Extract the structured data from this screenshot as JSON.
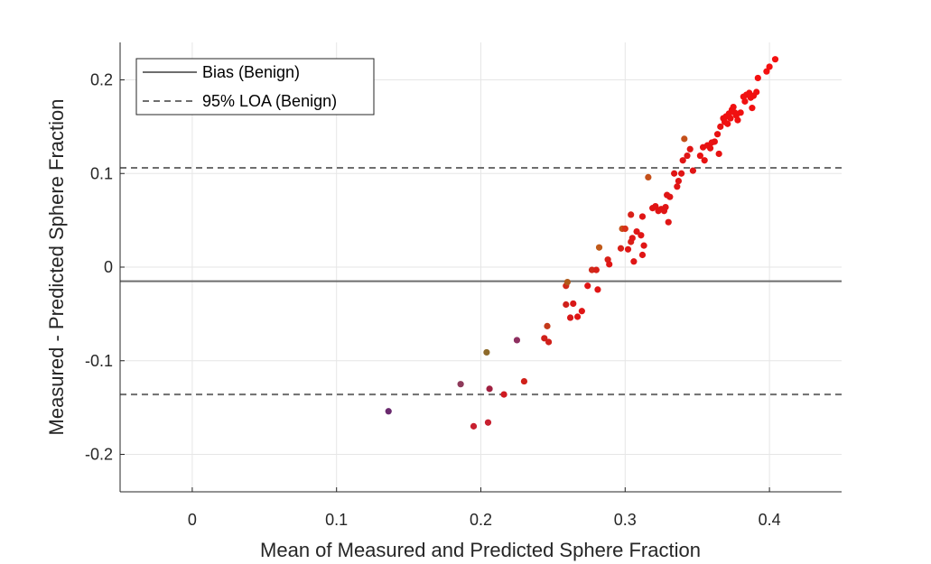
{
  "chart_data": {
    "type": "scatter",
    "title": "",
    "xlabel": "Mean of Measured and Predicted Sphere Fraction",
    "ylabel": "Measured - Predicted Sphere Fraction",
    "xlim": [
      -0.05,
      0.45
    ],
    "ylim": [
      -0.24,
      0.24
    ],
    "xticks": [
      0,
      0.1,
      0.2,
      0.3,
      0.4
    ],
    "xtick_labels": [
      "0",
      "0.1",
      "0.2",
      "0.3",
      "0.4"
    ],
    "yticks": [
      0.2,
      0.1,
      0,
      -0.1,
      -0.2
    ],
    "ytick_labels": [
      "0.2",
      "0.1",
      "0",
      "-0.1",
      "-0.2"
    ],
    "grid": true,
    "legend_position": "top-left",
    "lines": [
      {
        "name": "Bias (Benign)",
        "y": -0.015,
        "style": "solid",
        "color": "#6e6e6e"
      },
      {
        "name": "95% LOA (Benign)",
        "y": 0.106,
        "style": "dashed",
        "color": "#6e6e6e"
      },
      {
        "name": "95% LOA (Benign)",
        "y": -0.136,
        "style": "dashed",
        "color": "#6e6e6e"
      }
    ],
    "legend": [
      "Bias (Benign)",
      "95% LOA (Benign)"
    ],
    "points": [
      {
        "x": 0.136,
        "y": -0.154,
        "color": "#6a2a6e"
      },
      {
        "x": 0.186,
        "y": -0.125,
        "color": "#8e3a5a"
      },
      {
        "x": 0.195,
        "y": -0.17,
        "color": "#c82030"
      },
      {
        "x": 0.204,
        "y": -0.091,
        "color": "#8e6a2a"
      },
      {
        "x": 0.205,
        "y": -0.166,
        "color": "#c82030"
      },
      {
        "x": 0.206,
        "y": -0.13,
        "color": "#a02040"
      },
      {
        "x": 0.216,
        "y": -0.136,
        "color": "#d01a20"
      },
      {
        "x": 0.225,
        "y": -0.078,
        "color": "#8e3060"
      },
      {
        "x": 0.23,
        "y": -0.122,
        "color": "#d0201a"
      },
      {
        "x": 0.244,
        "y": -0.076,
        "color": "#d0201a"
      },
      {
        "x": 0.246,
        "y": -0.063,
        "color": "#c43a1a"
      },
      {
        "x": 0.247,
        "y": -0.08,
        "color": "#d0201a"
      },
      {
        "x": 0.259,
        "y": -0.04,
        "color": "#d0201a"
      },
      {
        "x": 0.259,
        "y": -0.02,
        "color": "#d02a1a"
      },
      {
        "x": 0.26,
        "y": -0.016,
        "color": "#b05a1a"
      },
      {
        "x": 0.262,
        "y": -0.054,
        "color": "#d81818"
      },
      {
        "x": 0.264,
        "y": -0.039,
        "color": "#d81818"
      },
      {
        "x": 0.267,
        "y": -0.053,
        "color": "#e01515"
      },
      {
        "x": 0.27,
        "y": -0.047,
        "color": "#e01515"
      },
      {
        "x": 0.274,
        "y": -0.02,
        "color": "#e01515"
      },
      {
        "x": 0.277,
        "y": -0.003,
        "color": "#d02a1a"
      },
      {
        "x": 0.28,
        "y": -0.003,
        "color": "#d82018"
      },
      {
        "x": 0.281,
        "y": -0.024,
        "color": "#e01515"
      },
      {
        "x": 0.282,
        "y": 0.021,
        "color": "#c05a1a"
      },
      {
        "x": 0.288,
        "y": 0.008,
        "color": "#d82018"
      },
      {
        "x": 0.289,
        "y": 0.003,
        "color": "#e01515"
      },
      {
        "x": 0.297,
        "y": 0.02,
        "color": "#d82018"
      },
      {
        "x": 0.298,
        "y": 0.041,
        "color": "#c4501a"
      },
      {
        "x": 0.3,
        "y": 0.041,
        "color": "#d83018"
      },
      {
        "x": 0.302,
        "y": 0.019,
        "color": "#e01515"
      },
      {
        "x": 0.304,
        "y": 0.027,
        "color": "#d82018"
      },
      {
        "x": 0.304,
        "y": 0.056,
        "color": "#d82018"
      },
      {
        "x": 0.305,
        "y": 0.031,
        "color": "#e01515"
      },
      {
        "x": 0.306,
        "y": 0.006,
        "color": "#e01515"
      },
      {
        "x": 0.308,
        "y": 0.038,
        "color": "#e01515"
      },
      {
        "x": 0.311,
        "y": 0.034,
        "color": "#e01515"
      },
      {
        "x": 0.312,
        "y": 0.013,
        "color": "#e01515"
      },
      {
        "x": 0.312,
        "y": 0.054,
        "color": "#e01515"
      },
      {
        "x": 0.313,
        "y": 0.023,
        "color": "#e01515"
      },
      {
        "x": 0.316,
        "y": 0.096,
        "color": "#c4501a"
      },
      {
        "x": 0.319,
        "y": 0.063,
        "color": "#e01515"
      },
      {
        "x": 0.321,
        "y": 0.065,
        "color": "#e01515"
      },
      {
        "x": 0.323,
        "y": 0.06,
        "color": "#e01515"
      },
      {
        "x": 0.325,
        "y": 0.062,
        "color": "#e01515"
      },
      {
        "x": 0.327,
        "y": 0.06,
        "color": "#e01515"
      },
      {
        "x": 0.328,
        "y": 0.064,
        "color": "#e01515"
      },
      {
        "x": 0.329,
        "y": 0.077,
        "color": "#e01515"
      },
      {
        "x": 0.33,
        "y": 0.048,
        "color": "#e01515"
      },
      {
        "x": 0.331,
        "y": 0.075,
        "color": "#e01515"
      },
      {
        "x": 0.334,
        "y": 0.1,
        "color": "#e01515"
      },
      {
        "x": 0.336,
        "y": 0.086,
        "color": "#e01515"
      },
      {
        "x": 0.337,
        "y": 0.092,
        "color": "#e01515"
      },
      {
        "x": 0.339,
        "y": 0.1,
        "color": "#e01515"
      },
      {
        "x": 0.34,
        "y": 0.114,
        "color": "#e01515"
      },
      {
        "x": 0.341,
        "y": 0.137,
        "color": "#c4501a"
      },
      {
        "x": 0.343,
        "y": 0.119,
        "color": "#e01515"
      },
      {
        "x": 0.345,
        "y": 0.126,
        "color": "#e01515"
      },
      {
        "x": 0.347,
        "y": 0.103,
        "color": "#e01515"
      },
      {
        "x": 0.352,
        "y": 0.119,
        "color": "#e81212"
      },
      {
        "x": 0.354,
        "y": 0.128,
        "color": "#e81212"
      },
      {
        "x": 0.355,
        "y": 0.114,
        "color": "#e81212"
      },
      {
        "x": 0.357,
        "y": 0.13,
        "color": "#e81212"
      },
      {
        "x": 0.359,
        "y": 0.127,
        "color": "#e81212"
      },
      {
        "x": 0.36,
        "y": 0.133,
        "color": "#e81212"
      },
      {
        "x": 0.362,
        "y": 0.134,
        "color": "#e81212"
      },
      {
        "x": 0.364,
        "y": 0.142,
        "color": "#e81212"
      },
      {
        "x": 0.365,
        "y": 0.121,
        "color": "#e81212"
      },
      {
        "x": 0.366,
        "y": 0.15,
        "color": "#e81212"
      },
      {
        "x": 0.368,
        "y": 0.159,
        "color": "#e81212"
      },
      {
        "x": 0.369,
        "y": 0.155,
        "color": "#f01010"
      },
      {
        "x": 0.37,
        "y": 0.161,
        "color": "#f01010"
      },
      {
        "x": 0.371,
        "y": 0.153,
        "color": "#f01010"
      },
      {
        "x": 0.372,
        "y": 0.164,
        "color": "#f01010"
      },
      {
        "x": 0.373,
        "y": 0.159,
        "color": "#f01010"
      },
      {
        "x": 0.374,
        "y": 0.168,
        "color": "#f01010"
      },
      {
        "x": 0.375,
        "y": 0.171,
        "color": "#f01010"
      },
      {
        "x": 0.376,
        "y": 0.165,
        "color": "#f01010"
      },
      {
        "x": 0.377,
        "y": 0.162,
        "color": "#f01010"
      },
      {
        "x": 0.378,
        "y": 0.157,
        "color": "#f01010"
      },
      {
        "x": 0.38,
        "y": 0.165,
        "color": "#f01010"
      },
      {
        "x": 0.382,
        "y": 0.182,
        "color": "#f01010"
      },
      {
        "x": 0.383,
        "y": 0.177,
        "color": "#f01010"
      },
      {
        "x": 0.384,
        "y": 0.184,
        "color": "#f01010"
      },
      {
        "x": 0.386,
        "y": 0.186,
        "color": "#f01010"
      },
      {
        "x": 0.387,
        "y": 0.181,
        "color": "#f01010"
      },
      {
        "x": 0.388,
        "y": 0.17,
        "color": "#f01010"
      },
      {
        "x": 0.389,
        "y": 0.183,
        "color": "#f01010"
      },
      {
        "x": 0.391,
        "y": 0.187,
        "color": "#f01010"
      },
      {
        "x": 0.392,
        "y": 0.202,
        "color": "#f41010"
      },
      {
        "x": 0.398,
        "y": 0.209,
        "color": "#f41010"
      },
      {
        "x": 0.4,
        "y": 0.214,
        "color": "#f41010"
      },
      {
        "x": 0.404,
        "y": 0.222,
        "color": "#f41010"
      }
    ]
  },
  "colors": {
    "axis": "#262626",
    "grid": "#e6e6e6",
    "reference_line": "#6e6e6e",
    "background": "#ffffff"
  }
}
